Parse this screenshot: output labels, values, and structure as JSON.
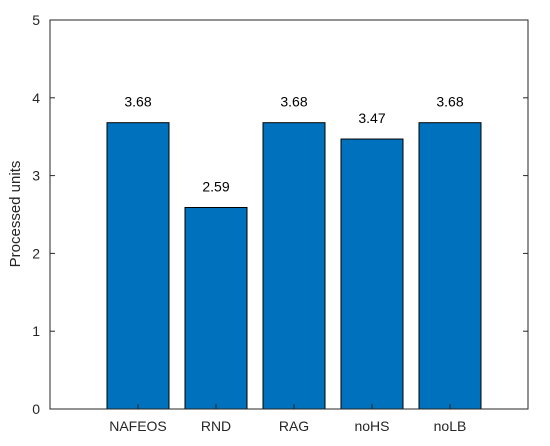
{
  "chart_data": {
    "type": "bar",
    "title": "",
    "xlabel": "",
    "ylabel": "Processed units",
    "categories": [
      "NAFEOS",
      "RND",
      "RAG",
      "noHS",
      "noLB"
    ],
    "values": [
      3.68,
      2.59,
      3.68,
      3.47,
      3.68
    ],
    "data_labels": [
      "3.68",
      "2.59",
      "3.68",
      "3.47",
      "3.68"
    ],
    "ylim": [
      0,
      5
    ],
    "yticks": [
      0,
      1,
      2,
      3,
      4,
      5
    ],
    "grid": false,
    "colors": {
      "bar": "#0072BD",
      "bar_edge": "#000000",
      "axis": "#262626"
    }
  }
}
